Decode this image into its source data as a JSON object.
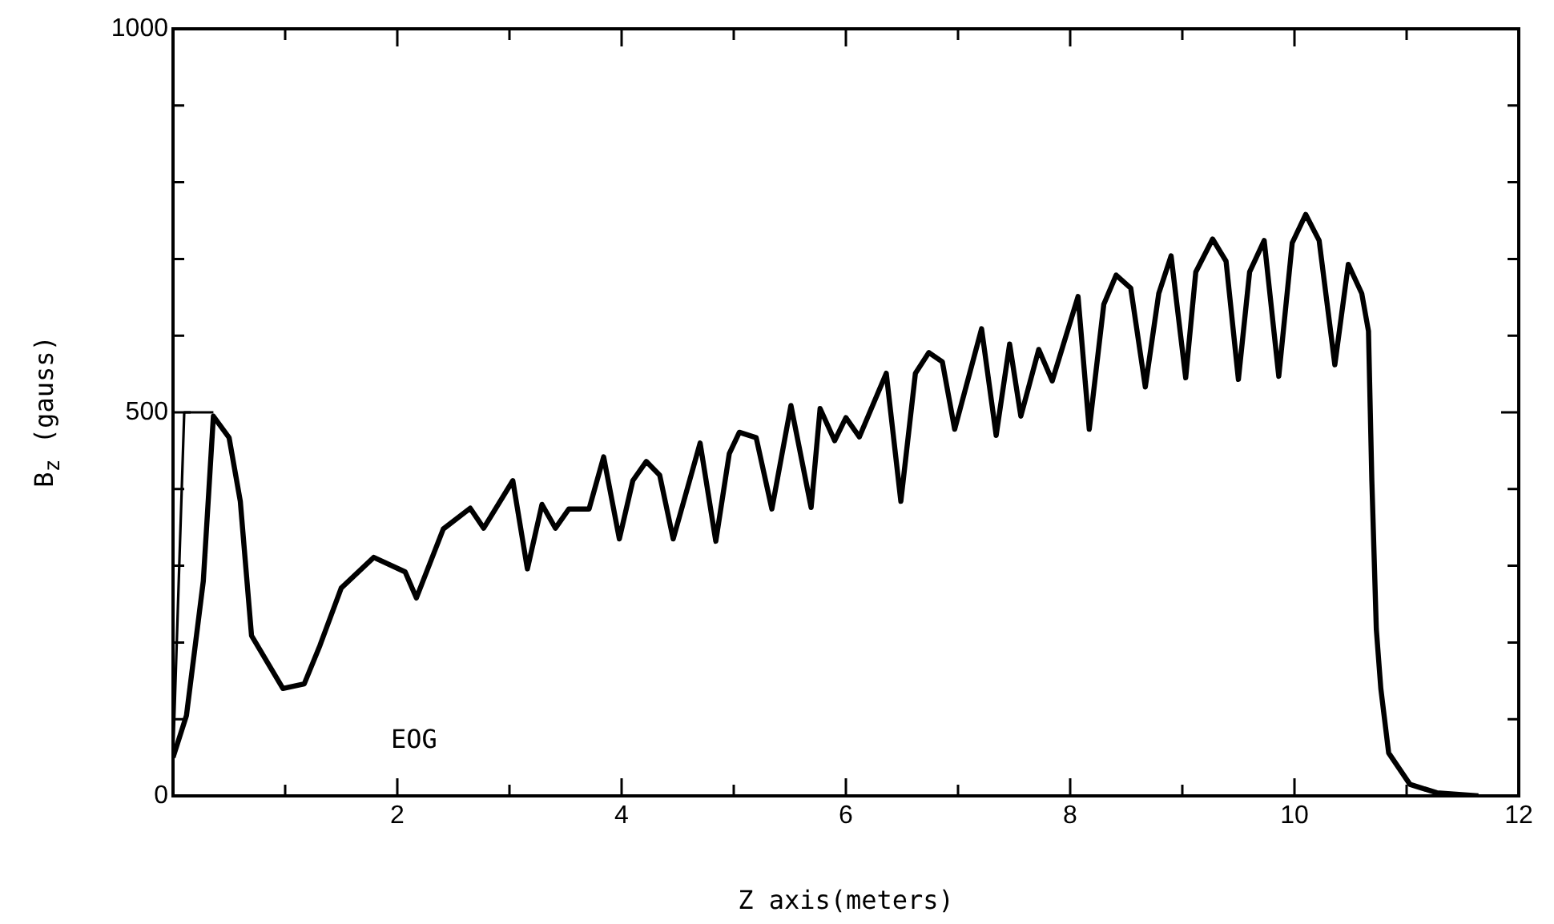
{
  "chart_data": {
    "type": "line",
    "xlabel": "Z axis(meters)",
    "ylabel": "B$_{z}$ (gauss)",
    "xlim": [
      0,
      12
    ],
    "ylim": [
      0,
      1000
    ],
    "xticks": [
      {
        "value": 0,
        "label": null
      },
      {
        "value": 1,
        "label": null
      },
      2,
      {
        "value": 3,
        "label": null
      },
      4,
      {
        "value": 5,
        "label": null
      },
      6,
      {
        "value": 7,
        "label": null
      },
      8,
      {
        "value": 9,
        "label": null
      },
      10,
      {
        "value": 11,
        "label": null
      },
      12
    ],
    "yticks": [
      0,
      {
        "value": 100,
        "label": null
      },
      {
        "value": 200,
        "label": null
      },
      {
        "value": 300,
        "label": null
      },
      {
        "value": 400,
        "label": null
      },
      500,
      {
        "value": 600,
        "label": null
      },
      {
        "value": 700,
        "label": null
      },
      {
        "value": 800,
        "label": null
      },
      {
        "value": 900,
        "label": null
      },
      1000
    ],
    "grid": false,
    "legend": false,
    "marker": "none",
    "line_style": "solid",
    "annotations": [
      "EOG"
    ],
    "series": [
      {
        "color": "#000000",
        "x": [
          0,
          0.12,
          0.27,
          0.36,
          0.5,
          0.6,
          0.7,
          0.98,
          1.17,
          1.31,
          1.5,
          1.79,
          2.07,
          2.17,
          2.41,
          2.65,
          2.77,
          3.03,
          3.16,
          3.29,
          3.41,
          3.53,
          3.71,
          3.84,
          3.98,
          4.1,
          4.22,
          4.34,
          4.46,
          4.7,
          4.84,
          4.96,
          5.05,
          5.2,
          5.34,
          5.51,
          5.69,
          5.77,
          5.9,
          6.0,
          6.12,
          6.36,
          6.49,
          6.62,
          6.74,
          6.86,
          6.97,
          7.21,
          7.34,
          7.46,
          7.56,
          7.72,
          7.84,
          8.07,
          8.17,
          8.3,
          8.41,
          8.54,
          8.67,
          8.79,
          8.9,
          9.03,
          9.12,
          9.27,
          9.39,
          9.5,
          9.6,
          9.73,
          9.86,
          9.98,
          10.1,
          10.22,
          10.36,
          10.48,
          10.6,
          10.66,
          10.69,
          10.73,
          10.77,
          10.84,
          11.03,
          11.27,
          11.64
        ],
        "values": [
          50,
          105,
          280,
          495,
          467,
          384,
          209,
          140,
          146,
          196,
          271,
          311,
          292,
          258,
          348,
          375,
          349,
          411,
          296,
          380,
          349,
          374,
          374,
          442,
          335,
          411,
          436,
          418,
          335,
          460,
          332,
          446,
          474,
          467,
          374,
          509,
          376,
          505,
          463,
          493,
          468,
          551,
          384,
          551,
          578,
          566,
          478,
          609,
          470,
          589,
          495,
          582,
          541,
          651,
          478,
          641,
          679,
          662,
          533,
          655,
          704,
          545,
          683,
          726,
          697,
          543,
          683,
          724,
          547,
          721,
          758,
          724,
          562,
          693,
          655,
          606,
          411,
          217,
          140,
          56,
          15,
          4,
          0
        ]
      },
      {
        "color": "#000000",
        "x": [
          0,
          0.1,
          0.36
        ],
        "values": [
          50,
          500,
          500
        ]
      }
    ]
  }
}
